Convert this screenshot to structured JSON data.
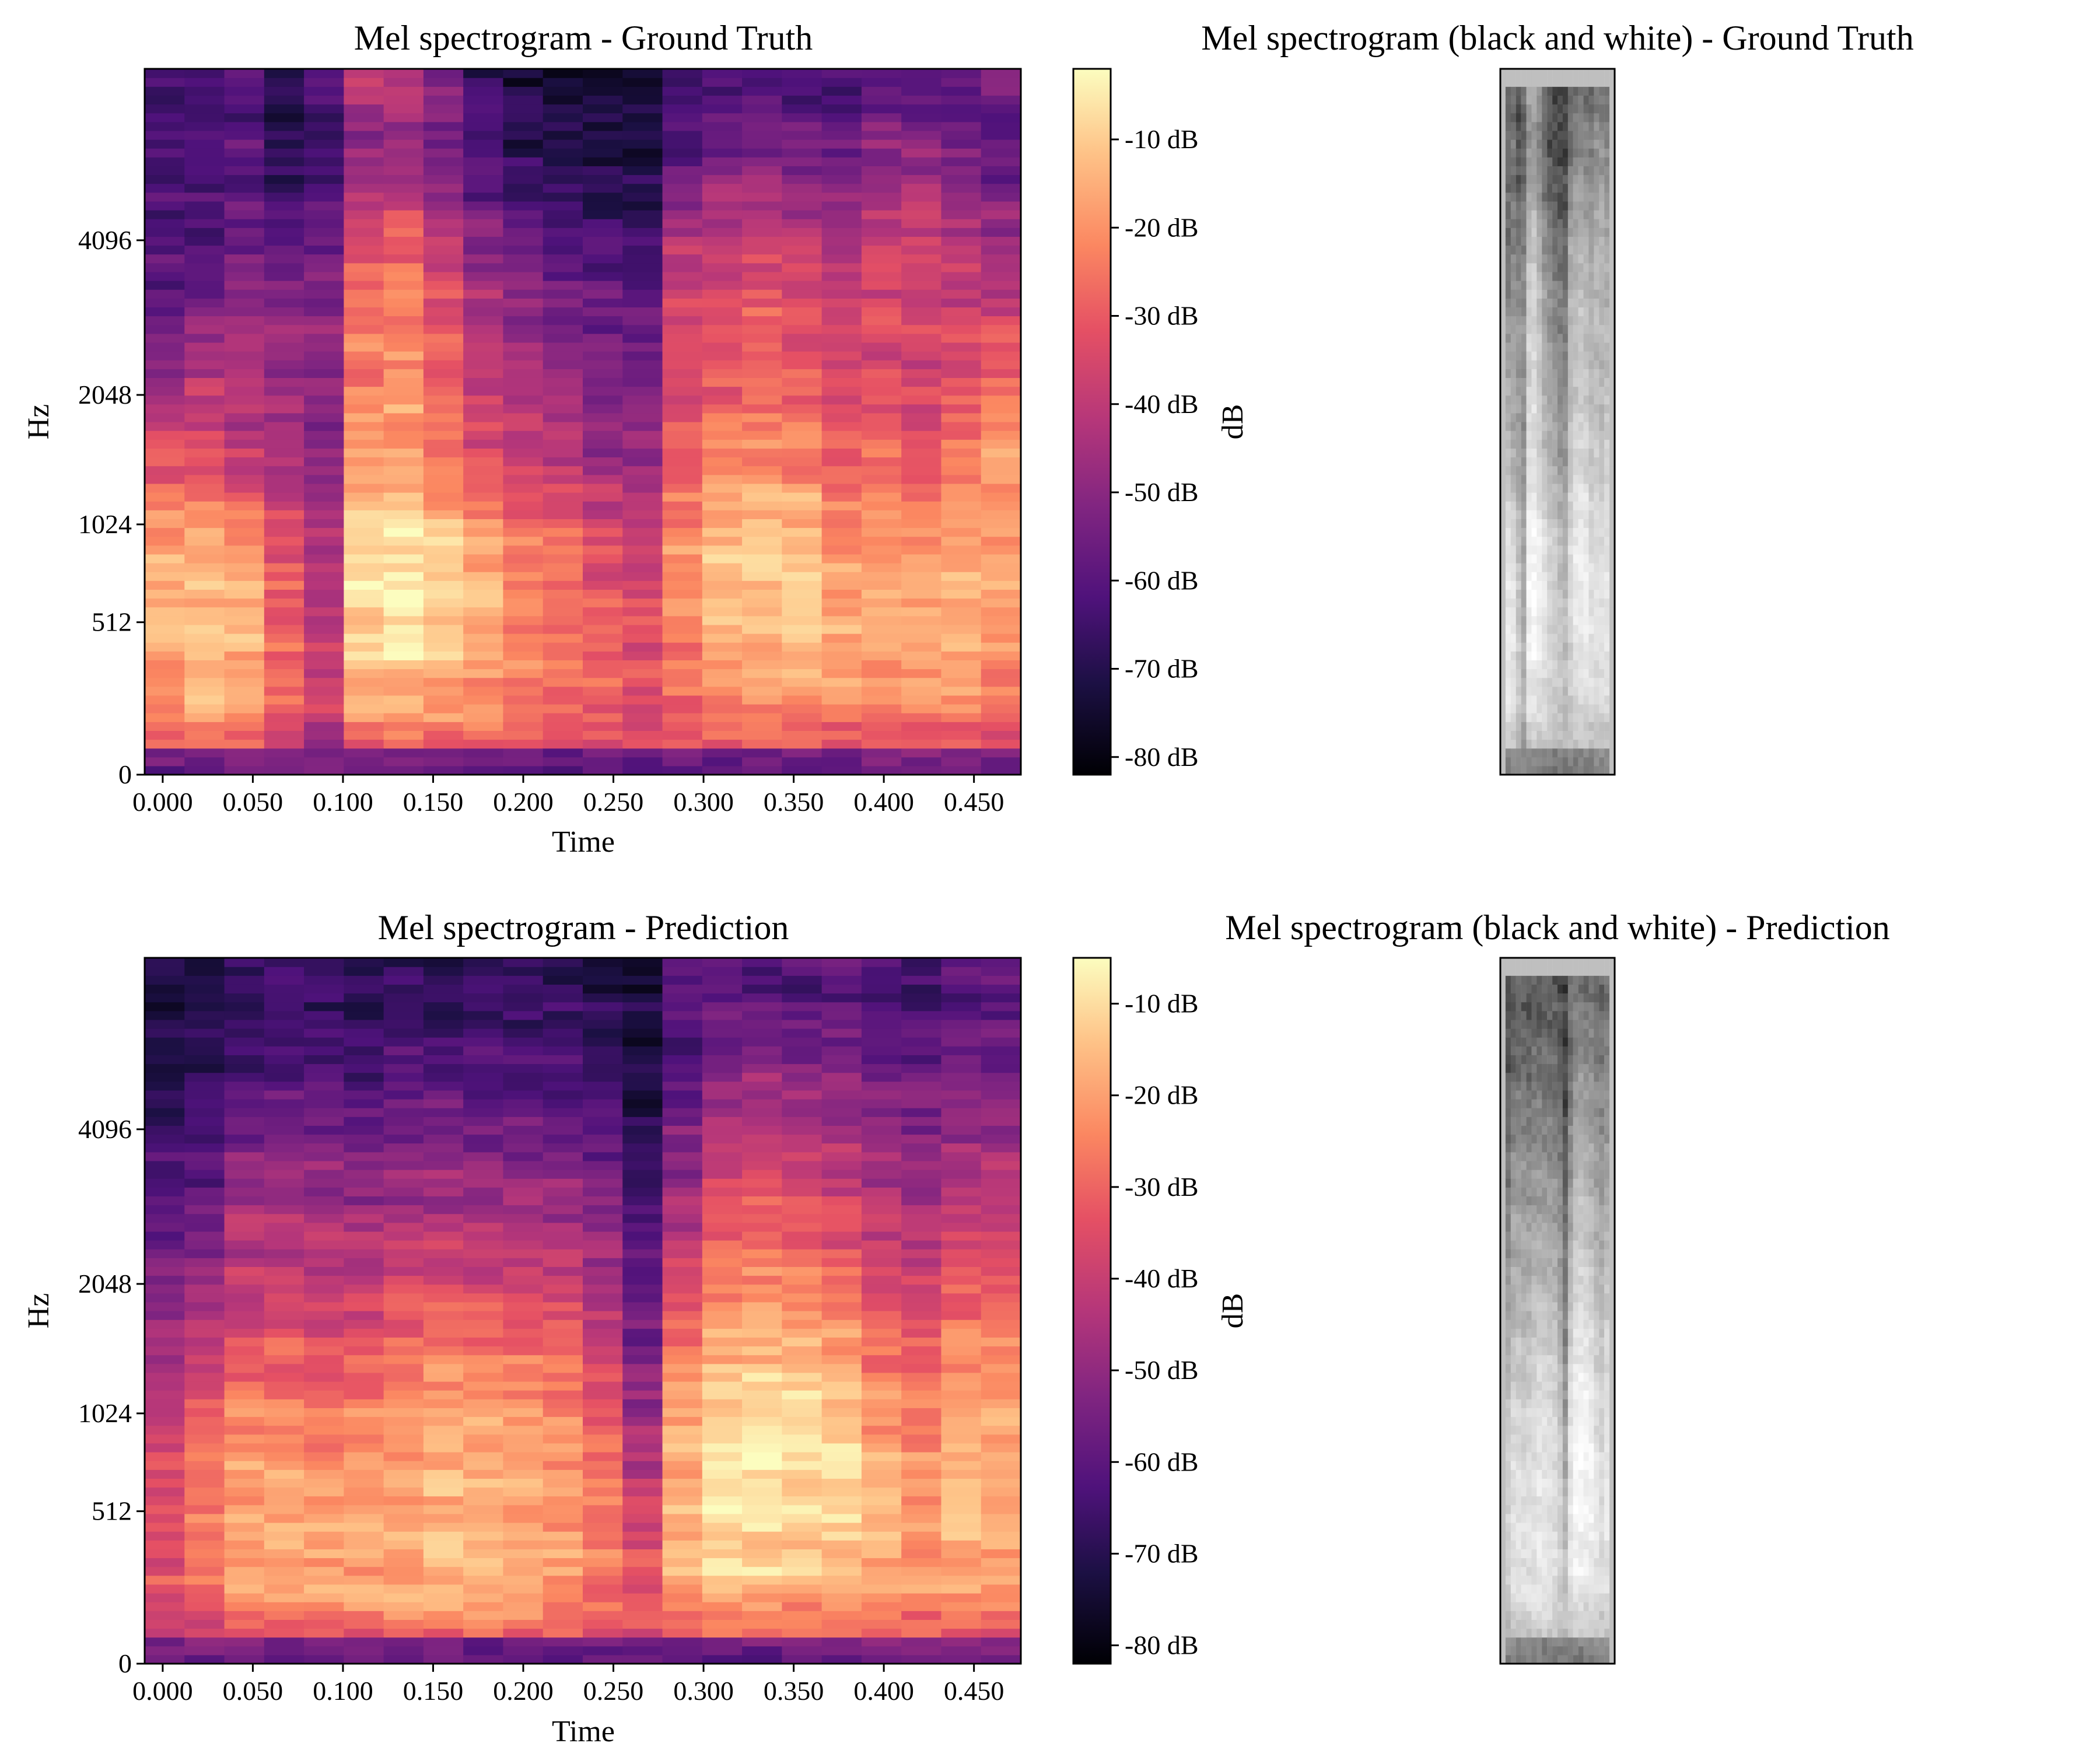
{
  "chart_data": [
    {
      "type": "heatmap",
      "title": "Mel spectrogram - Ground Truth",
      "xlabel": "Time",
      "ylabel": "Hz",
      "x_ticks": [
        "0.000",
        "0.050",
        "0.100",
        "0.150",
        "0.200",
        "0.250",
        "0.300",
        "0.350",
        "0.400",
        "0.450"
      ],
      "x_tick_values": [
        0,
        0.05,
        0.1,
        0.15,
        0.2,
        0.25,
        0.3,
        0.35,
        0.4,
        0.45
      ],
      "xlim": [
        -0.01,
        0.476
      ],
      "y_ticks": [
        "0",
        "512",
        "1024",
        "2048",
        "4096"
      ],
      "y_scale": "mel",
      "colormap": "magma",
      "colorbar": {
        "label": "dB",
        "ticks": [
          "-10 dB",
          "-20 dB",
          "-30 dB",
          "-40 dB",
          "-50 dB",
          "-60 dB",
          "-70 dB",
          "-80 dB"
        ],
        "tick_values": [
          -10,
          -20,
          -30,
          -40,
          -50,
          -60,
          -70,
          -80
        ],
        "range": [
          -82,
          -2
        ]
      },
      "frames": 22,
      "mel_bands": 80,
      "intensity": [
        [
          0.62,
          0.78,
          0.85,
          0.82,
          0.62,
          0.42,
          0.3,
          0.24,
          0.22,
          0.22
        ],
        [
          0.66,
          0.86,
          0.88,
          0.85,
          0.62,
          0.5,
          0.36,
          0.26,
          0.24,
          0.22
        ],
        [
          0.62,
          0.82,
          0.84,
          0.78,
          0.52,
          0.5,
          0.4,
          0.3,
          0.28,
          0.26
        ],
        [
          0.52,
          0.68,
          0.66,
          0.62,
          0.46,
          0.44,
          0.38,
          0.26,
          0.16,
          0.1
        ],
        [
          0.44,
          0.55,
          0.52,
          0.48,
          0.4,
          0.4,
          0.4,
          0.3,
          0.22,
          0.28
        ],
        [
          0.6,
          0.82,
          0.93,
          0.92,
          0.8,
          0.74,
          0.7,
          0.6,
          0.38,
          0.52
        ],
        [
          0.62,
          0.86,
          0.97,
          0.96,
          0.82,
          0.78,
          0.74,
          0.64,
          0.42,
          0.5
        ],
        [
          0.6,
          0.82,
          0.92,
          0.9,
          0.74,
          0.66,
          0.62,
          0.5,
          0.34,
          0.4
        ],
        [
          0.58,
          0.78,
          0.84,
          0.8,
          0.62,
          0.54,
          0.48,
          0.36,
          0.22,
          0.18
        ],
        [
          0.56,
          0.74,
          0.76,
          0.72,
          0.56,
          0.48,
          0.4,
          0.3,
          0.16,
          0.12
        ],
        [
          0.54,
          0.72,
          0.72,
          0.68,
          0.5,
          0.44,
          0.36,
          0.26,
          0.14,
          0.1
        ],
        [
          0.52,
          0.68,
          0.66,
          0.6,
          0.44,
          0.4,
          0.32,
          0.2,
          0.12,
          0.08
        ],
        [
          0.52,
          0.62,
          0.6,
          0.54,
          0.42,
          0.36,
          0.3,
          0.2,
          0.12,
          0.1
        ],
        [
          0.54,
          0.7,
          0.76,
          0.76,
          0.66,
          0.6,
          0.58,
          0.46,
          0.28,
          0.22
        ],
        [
          0.56,
          0.76,
          0.86,
          0.86,
          0.74,
          0.64,
          0.62,
          0.52,
          0.34,
          0.24
        ],
        [
          0.56,
          0.8,
          0.88,
          0.9,
          0.76,
          0.7,
          0.64,
          0.54,
          0.36,
          0.26
        ],
        [
          0.56,
          0.8,
          0.9,
          0.88,
          0.74,
          0.66,
          0.62,
          0.5,
          0.34,
          0.24
        ],
        [
          0.54,
          0.78,
          0.82,
          0.78,
          0.66,
          0.58,
          0.56,
          0.44,
          0.32,
          0.22
        ],
        [
          0.56,
          0.78,
          0.84,
          0.8,
          0.68,
          0.6,
          0.6,
          0.52,
          0.4,
          0.28
        ],
        [
          0.56,
          0.78,
          0.84,
          0.8,
          0.66,
          0.56,
          0.56,
          0.56,
          0.4,
          0.26
        ],
        [
          0.56,
          0.78,
          0.84,
          0.82,
          0.74,
          0.62,
          0.56,
          0.48,
          0.34,
          0.24
        ],
        [
          0.54,
          0.74,
          0.78,
          0.8,
          0.82,
          0.68,
          0.54,
          0.42,
          0.3,
          0.34
        ]
      ]
    },
    {
      "type": "heatmap",
      "title": "Mel spectrogram (black and white) - Ground Truth",
      "colormap": "gray"
    },
    {
      "type": "heatmap",
      "title": "Mel spectrogram - Prediction",
      "xlabel": "Time",
      "ylabel": "Hz",
      "x_ticks": [
        "0.000",
        "0.050",
        "0.100",
        "0.150",
        "0.200",
        "0.250",
        "0.300",
        "0.350",
        "0.400",
        "0.450"
      ],
      "x_tick_values": [
        0,
        0.05,
        0.1,
        0.15,
        0.2,
        0.25,
        0.3,
        0.35,
        0.4,
        0.45
      ],
      "xlim": [
        -0.01,
        0.476
      ],
      "y_ticks": [
        "0",
        "512",
        "1024",
        "2048",
        "4096"
      ],
      "y_scale": "mel",
      "colormap": "magma",
      "colorbar": {
        "label": "dB",
        "ticks": [
          "-10 dB",
          "-20 dB",
          "-30 dB",
          "-40 dB",
          "-50 dB",
          "-60 dB",
          "-70 dB",
          "-80 dB"
        ],
        "tick_values": [
          -10,
          -20,
          -30,
          -40,
          -50,
          -60,
          -70,
          -80
        ],
        "range": [
          -82,
          -5
        ]
      },
      "frames": 22,
      "mel_bands": 80,
      "intensity": [
        [
          0.5,
          0.62,
          0.6,
          0.56,
          0.44,
          0.36,
          0.28,
          0.18,
          0.12,
          0.1
        ],
        [
          0.52,
          0.7,
          0.72,
          0.66,
          0.52,
          0.4,
          0.3,
          0.22,
          0.14,
          0.12
        ],
        [
          0.6,
          0.8,
          0.82,
          0.76,
          0.62,
          0.52,
          0.44,
          0.3,
          0.2,
          0.16
        ],
        [
          0.62,
          0.84,
          0.82,
          0.76,
          0.64,
          0.54,
          0.46,
          0.32,
          0.22,
          0.18
        ],
        [
          0.62,
          0.84,
          0.8,
          0.74,
          0.62,
          0.52,
          0.44,
          0.32,
          0.22,
          0.18
        ],
        [
          0.6,
          0.82,
          0.8,
          0.76,
          0.64,
          0.52,
          0.42,
          0.3,
          0.2,
          0.16
        ],
        [
          0.62,
          0.84,
          0.82,
          0.8,
          0.68,
          0.56,
          0.44,
          0.32,
          0.22,
          0.18
        ],
        [
          0.62,
          0.84,
          0.84,
          0.84,
          0.72,
          0.58,
          0.46,
          0.34,
          0.22,
          0.18
        ],
        [
          0.62,
          0.84,
          0.84,
          0.82,
          0.7,
          0.56,
          0.44,
          0.32,
          0.22,
          0.18
        ],
        [
          0.6,
          0.82,
          0.82,
          0.8,
          0.7,
          0.56,
          0.44,
          0.32,
          0.22,
          0.18
        ],
        [
          0.6,
          0.8,
          0.8,
          0.78,
          0.66,
          0.54,
          0.42,
          0.3,
          0.22,
          0.16
        ],
        [
          0.56,
          0.74,
          0.72,
          0.66,
          0.54,
          0.44,
          0.36,
          0.26,
          0.16,
          0.12
        ],
        [
          0.54,
          0.64,
          0.56,
          0.46,
          0.36,
          0.3,
          0.22,
          0.16,
          0.12,
          0.1
        ],
        [
          0.58,
          0.82,
          0.86,
          0.84,
          0.72,
          0.58,
          0.44,
          0.34,
          0.24,
          0.28
        ],
        [
          0.6,
          0.88,
          0.96,
          0.94,
          0.84,
          0.72,
          0.6,
          0.5,
          0.3,
          0.28
        ],
        [
          0.6,
          0.88,
          0.97,
          0.96,
          0.86,
          0.74,
          0.62,
          0.52,
          0.32,
          0.24
        ],
        [
          0.6,
          0.86,
          0.94,
          0.92,
          0.84,
          0.7,
          0.6,
          0.5,
          0.32,
          0.24
        ],
        [
          0.6,
          0.86,
          0.92,
          0.9,
          0.8,
          0.66,
          0.56,
          0.44,
          0.32,
          0.26
        ],
        [
          0.6,
          0.82,
          0.86,
          0.8,
          0.7,
          0.58,
          0.5,
          0.4,
          0.3,
          0.22
        ],
        [
          0.58,
          0.8,
          0.8,
          0.74,
          0.64,
          0.54,
          0.46,
          0.36,
          0.26,
          0.2
        ],
        [
          0.58,
          0.82,
          0.86,
          0.84,
          0.76,
          0.62,
          0.5,
          0.4,
          0.3,
          0.26
        ],
        [
          0.56,
          0.8,
          0.84,
          0.82,
          0.74,
          0.62,
          0.5,
          0.4,
          0.3,
          0.26
        ]
      ]
    },
    {
      "type": "heatmap",
      "title": "Mel spectrogram (black and white) - Prediction",
      "colormap": "gray"
    }
  ]
}
